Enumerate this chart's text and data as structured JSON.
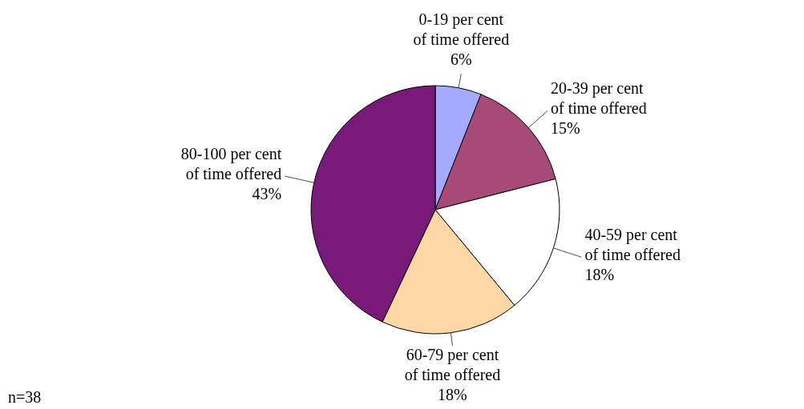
{
  "chart_data": {
    "type": "pie",
    "categories": [
      "0-19 per cent of time offered",
      "20-39 per cent of time offered",
      "40-59 per cent of time offered",
      "60-79 per cent of time offered",
      "80-100 per cent of time offered"
    ],
    "values": [
      6,
      15,
      18,
      18,
      43
    ],
    "colors": [
      "#a6aaff",
      "#a64b78",
      "#ffffff",
      "#ffd6a6",
      "#7a1a78"
    ],
    "value_labels": [
      "6%",
      "15%",
      "18%",
      "18%",
      "43%"
    ],
    "annotations": [
      "n=38"
    ]
  }
}
